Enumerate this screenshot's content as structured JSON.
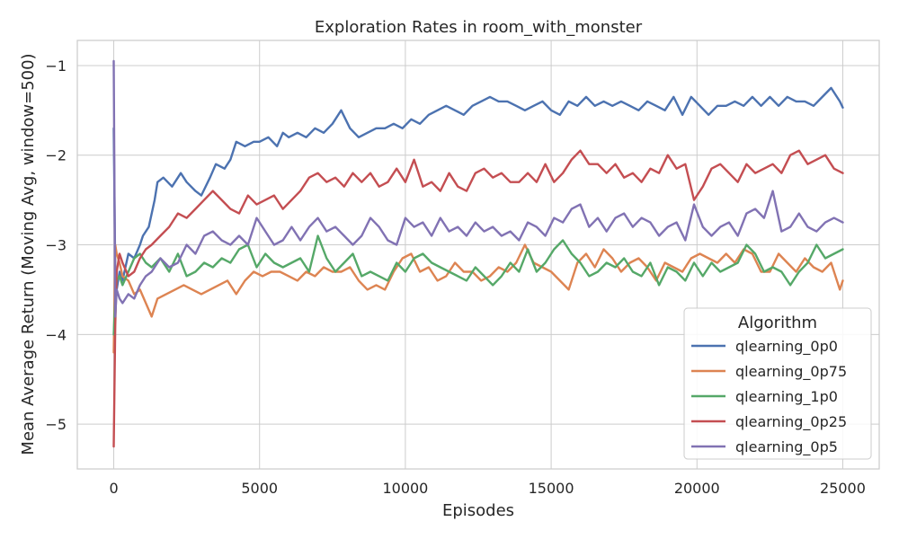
{
  "chart_data": {
    "type": "line",
    "title": "Exploration Rates in room_with_monster",
    "xlabel": "Episodes",
    "ylabel": "Mean Average Return (Moving Avg, window=500)",
    "xlim": [
      -1250,
      26250
    ],
    "ylim": [
      -5.5,
      -0.72
    ],
    "xticks": [
      0,
      5000,
      10000,
      15000,
      20000,
      25000
    ],
    "yticks": [
      -5,
      -4,
      -3,
      -2,
      -1
    ],
    "grid": true,
    "legend": {
      "title": "Algorithm",
      "placement": "lower-right"
    },
    "series": [
      {
        "name": "qlearning_0p0",
        "color": "#4c72b0",
        "x": [
          0,
          50,
          100,
          200,
          300,
          500,
          700,
          900,
          1000,
          1200,
          1400,
          1500,
          1700,
          2000,
          2300,
          2500,
          2800,
          3000,
          3300,
          3500,
          3800,
          4000,
          4200,
          4500,
          4800,
          5000,
          5300,
          5600,
          5800,
          6000,
          6300,
          6600,
          6900,
          7200,
          7500,
          7800,
          8100,
          8400,
          8700,
          9000,
          9300,
          9600,
          9900,
          10200,
          10500,
          10800,
          11100,
          11400,
          11700,
          12000,
          12300,
          12600,
          12900,
          13200,
          13500,
          13800,
          14100,
          14400,
          14700,
          15000,
          15300,
          15600,
          15900,
          16200,
          16500,
          16800,
          17100,
          17400,
          17700,
          18000,
          18300,
          18600,
          18900,
          19200,
          19500,
          19800,
          20100,
          20400,
          20700,
          21000,
          21300,
          21600,
          21900,
          22200,
          22500,
          22800,
          23100,
          23400,
          23700,
          24000,
          24300,
          24600,
          24900,
          25000
        ],
        "y": [
          -1.7,
          -3.3,
          -3.5,
          -3.3,
          -3.4,
          -3.1,
          -3.15,
          -3.0,
          -2.9,
          -2.8,
          -2.5,
          -2.3,
          -2.25,
          -2.35,
          -2.2,
          -2.3,
          -2.4,
          -2.45,
          -2.25,
          -2.1,
          -2.15,
          -2.05,
          -1.85,
          -1.9,
          -1.85,
          -1.85,
          -1.8,
          -1.9,
          -1.75,
          -1.8,
          -1.75,
          -1.8,
          -1.7,
          -1.75,
          -1.65,
          -1.5,
          -1.7,
          -1.8,
          -1.75,
          -1.7,
          -1.7,
          -1.65,
          -1.7,
          -1.6,
          -1.65,
          -1.55,
          -1.5,
          -1.45,
          -1.5,
          -1.55,
          -1.45,
          -1.4,
          -1.35,
          -1.4,
          -1.4,
          -1.45,
          -1.5,
          -1.45,
          -1.4,
          -1.5,
          -1.55,
          -1.4,
          -1.45,
          -1.35,
          -1.45,
          -1.4,
          -1.45,
          -1.4,
          -1.45,
          -1.5,
          -1.4,
          -1.45,
          -1.5,
          -1.35,
          -1.55,
          -1.35,
          -1.45,
          -1.55,
          -1.45,
          -1.45,
          -1.4,
          -1.45,
          -1.35,
          -1.45,
          -1.35,
          -1.45,
          -1.35,
          -1.4,
          -1.4,
          -1.45,
          -1.35,
          -1.25,
          -1.4,
          -1.47
        ]
      },
      {
        "name": "qlearning_0p75",
        "color": "#dd8452",
        "x": [
          0,
          50,
          100,
          200,
          300,
          500,
          700,
          900,
          1100,
          1300,
          1500,
          1800,
          2100,
          2400,
          2700,
          3000,
          3300,
          3600,
          3900,
          4200,
          4500,
          4800,
          5100,
          5400,
          5700,
          6000,
          6300,
          6600,
          6900,
          7200,
          7500,
          7800,
          8100,
          8400,
          8700,
          9000,
          9300,
          9600,
          9900,
          10200,
          10500,
          10800,
          11100,
          11400,
          11700,
          12000,
          12300,
          12600,
          12900,
          13200,
          13500,
          13800,
          14100,
          14400,
          14700,
          15000,
          15300,
          15600,
          15900,
          16200,
          16500,
          16800,
          17100,
          17400,
          17700,
          18000,
          18300,
          18600,
          18900,
          19200,
          19500,
          19800,
          20100,
          20400,
          20700,
          21000,
          21300,
          21600,
          21900,
          22200,
          22500,
          22800,
          23100,
          23400,
          23700,
          24000,
          24300,
          24600,
          24900,
          25000
        ],
        "y": [
          -4.2,
          -3.0,
          -3.1,
          -3.2,
          -3.35,
          -3.4,
          -3.55,
          -3.5,
          -3.65,
          -3.8,
          -3.6,
          -3.55,
          -3.5,
          -3.45,
          -3.5,
          -3.55,
          -3.5,
          -3.45,
          -3.4,
          -3.55,
          -3.4,
          -3.3,
          -3.35,
          -3.3,
          -3.3,
          -3.35,
          -3.4,
          -3.3,
          -3.35,
          -3.25,
          -3.3,
          -3.3,
          -3.25,
          -3.4,
          -3.5,
          -3.45,
          -3.5,
          -3.3,
          -3.15,
          -3.1,
          -3.3,
          -3.25,
          -3.4,
          -3.35,
          -3.2,
          -3.3,
          -3.3,
          -3.4,
          -3.35,
          -3.25,
          -3.3,
          -3.2,
          -3.0,
          -3.2,
          -3.25,
          -3.3,
          -3.4,
          -3.5,
          -3.2,
          -3.1,
          -3.25,
          -3.05,
          -3.15,
          -3.3,
          -3.2,
          -3.15,
          -3.25,
          -3.4,
          -3.2,
          -3.25,
          -3.3,
          -3.15,
          -3.1,
          -3.15,
          -3.2,
          -3.1,
          -3.2,
          -3.05,
          -3.1,
          -3.3,
          -3.3,
          -3.1,
          -3.2,
          -3.3,
          -3.15,
          -3.25,
          -3.3,
          -3.2,
          -3.5,
          -3.4
        ]
      },
      {
        "name": "qlearning_1p0",
        "color": "#55a868",
        "x": [
          0,
          50,
          100,
          200,
          300,
          500,
          700,
          900,
          1100,
          1300,
          1600,
          1900,
          2200,
          2500,
          2800,
          3100,
          3400,
          3700,
          4000,
          4300,
          4600,
          4900,
          5200,
          5500,
          5800,
          6100,
          6400,
          6700,
          7000,
          7300,
          7600,
          7900,
          8200,
          8500,
          8800,
          9100,
          9400,
          9700,
          10000,
          10300,
          10600,
          10900,
          11200,
          11500,
          11800,
          12100,
          12400,
          12700,
          13000,
          13300,
          13600,
          13900,
          14200,
          14500,
          14800,
          15100,
          15400,
          15700,
          16000,
          16300,
          16600,
          16900,
          17200,
          17500,
          17800,
          18100,
          18400,
          18700,
          19000,
          19300,
          19600,
          19900,
          20200,
          20500,
          20800,
          21100,
          21400,
          21700,
          22000,
          22300,
          22600,
          22900,
          23200,
          23500,
          23800,
          24100,
          24400,
          24700,
          25000
        ],
        "y": [
          -4.0,
          -3.6,
          -3.4,
          -3.35,
          -3.45,
          -3.3,
          -3.15,
          -3.1,
          -3.2,
          -3.25,
          -3.15,
          -3.3,
          -3.1,
          -3.35,
          -3.3,
          -3.2,
          -3.25,
          -3.15,
          -3.2,
          -3.05,
          -3.0,
          -3.25,
          -3.1,
          -3.2,
          -3.25,
          -3.2,
          -3.15,
          -3.3,
          -2.9,
          -3.15,
          -3.3,
          -3.2,
          -3.1,
          -3.35,
          -3.3,
          -3.35,
          -3.4,
          -3.2,
          -3.3,
          -3.15,
          -3.1,
          -3.2,
          -3.25,
          -3.3,
          -3.35,
          -3.4,
          -3.25,
          -3.35,
          -3.45,
          -3.35,
          -3.2,
          -3.3,
          -3.05,
          -3.3,
          -3.2,
          -3.05,
          -2.95,
          -3.1,
          -3.2,
          -3.35,
          -3.3,
          -3.2,
          -3.25,
          -3.15,
          -3.3,
          -3.35,
          -3.2,
          -3.45,
          -3.25,
          -3.3,
          -3.4,
          -3.2,
          -3.35,
          -3.2,
          -3.3,
          -3.25,
          -3.2,
          -3.0,
          -3.1,
          -3.3,
          -3.25,
          -3.3,
          -3.45,
          -3.3,
          -3.2,
          -3.0,
          -3.15,
          -3.1,
          -3.05
        ]
      },
      {
        "name": "qlearning_0p25",
        "color": "#c44e52",
        "x": [
          0,
          50,
          100,
          200,
          300,
          500,
          700,
          900,
          1100,
          1300,
          1600,
          1900,
          2200,
          2500,
          2800,
          3100,
          3400,
          3700,
          4000,
          4300,
          4600,
          4900,
          5200,
          5500,
          5800,
          6100,
          6400,
          6700,
          7000,
          7300,
          7600,
          7900,
          8200,
          8500,
          8800,
          9100,
          9400,
          9700,
          10000,
          10300,
          10600,
          10900,
          11200,
          11500,
          11800,
          12100,
          12400,
          12700,
          13000,
          13300,
          13600,
          13900,
          14200,
          14500,
          14800,
          15100,
          15400,
          15700,
          16000,
          16300,
          16600,
          16900,
          17200,
          17500,
          17800,
          18100,
          18400,
          18700,
          19000,
          19300,
          19600,
          19900,
          20200,
          20500,
          20800,
          21100,
          21400,
          21700,
          22000,
          22300,
          22600,
          22900,
          23200,
          23500,
          23800,
          24100,
          24400,
          24700,
          25000
        ],
        "y": [
          -5.25,
          -3.9,
          -3.3,
          -3.1,
          -3.2,
          -3.35,
          -3.3,
          -3.15,
          -3.05,
          -3.0,
          -2.9,
          -2.8,
          -2.65,
          -2.7,
          -2.6,
          -2.5,
          -2.4,
          -2.5,
          -2.6,
          -2.65,
          -2.45,
          -2.55,
          -2.5,
          -2.45,
          -2.6,
          -2.5,
          -2.4,
          -2.25,
          -2.2,
          -2.3,
          -2.25,
          -2.35,
          -2.2,
          -2.3,
          -2.2,
          -2.35,
          -2.3,
          -2.15,
          -2.3,
          -2.05,
          -2.35,
          -2.3,
          -2.4,
          -2.2,
          -2.35,
          -2.4,
          -2.2,
          -2.15,
          -2.25,
          -2.2,
          -2.3,
          -2.3,
          -2.2,
          -2.3,
          -2.1,
          -2.3,
          -2.2,
          -2.05,
          -1.95,
          -2.1,
          -2.1,
          -2.2,
          -2.1,
          -2.25,
          -2.2,
          -2.3,
          -2.15,
          -2.2,
          -2.0,
          -2.15,
          -2.1,
          -2.5,
          -2.35,
          -2.15,
          -2.1,
          -2.2,
          -2.3,
          -2.1,
          -2.2,
          -2.15,
          -2.1,
          -2.2,
          -2.0,
          -1.95,
          -2.1,
          -2.05,
          -2.0,
          -2.15,
          -2.2
        ]
      },
      {
        "name": "qlearning_0p5",
        "color": "#8172b3",
        "x": [
          0,
          50,
          100,
          200,
          300,
          500,
          700,
          900,
          1100,
          1300,
          1600,
          1900,
          2200,
          2500,
          2800,
          3100,
          3400,
          3700,
          4000,
          4300,
          4600,
          4900,
          5200,
          5500,
          5800,
          6100,
          6400,
          6700,
          7000,
          7300,
          7600,
          7900,
          8200,
          8500,
          8800,
          9100,
          9400,
          9700,
          10000,
          10300,
          10600,
          10900,
          11200,
          11500,
          11800,
          12100,
          12400,
          12700,
          13000,
          13300,
          13600,
          13900,
          14200,
          14500,
          14800,
          15100,
          15400,
          15700,
          16000,
          16300,
          16600,
          16900,
          17200,
          17500,
          17800,
          18100,
          18400,
          18700,
          19000,
          19300,
          19600,
          19900,
          20200,
          20500,
          20800,
          21100,
          21400,
          21700,
          22000,
          22300,
          22600,
          22900,
          23200,
          23500,
          23800,
          24100,
          24400,
          24700,
          25000
        ],
        "y": [
          -0.95,
          -3.8,
          -3.5,
          -3.6,
          -3.65,
          -3.55,
          -3.6,
          -3.45,
          -3.35,
          -3.3,
          -3.15,
          -3.25,
          -3.2,
          -3.0,
          -3.1,
          -2.9,
          -2.85,
          -2.95,
          -3.0,
          -2.9,
          -3.0,
          -2.7,
          -2.85,
          -3.0,
          -2.95,
          -2.8,
          -2.95,
          -2.8,
          -2.7,
          -2.85,
          -2.8,
          -2.9,
          -3.0,
          -2.9,
          -2.7,
          -2.8,
          -2.95,
          -3.0,
          -2.7,
          -2.8,
          -2.75,
          -2.9,
          -2.7,
          -2.85,
          -2.8,
          -2.9,
          -2.75,
          -2.85,
          -2.8,
          -2.9,
          -2.85,
          -2.95,
          -2.75,
          -2.8,
          -2.9,
          -2.7,
          -2.75,
          -2.6,
          -2.55,
          -2.8,
          -2.7,
          -2.85,
          -2.7,
          -2.65,
          -2.8,
          -2.7,
          -2.75,
          -2.9,
          -2.8,
          -2.75,
          -2.95,
          -2.55,
          -2.8,
          -2.9,
          -2.8,
          -2.75,
          -2.9,
          -2.65,
          -2.6,
          -2.7,
          -2.4,
          -2.85,
          -2.8,
          -2.65,
          -2.8,
          -2.85,
          -2.75,
          -2.7,
          -2.75
        ]
      }
    ]
  }
}
